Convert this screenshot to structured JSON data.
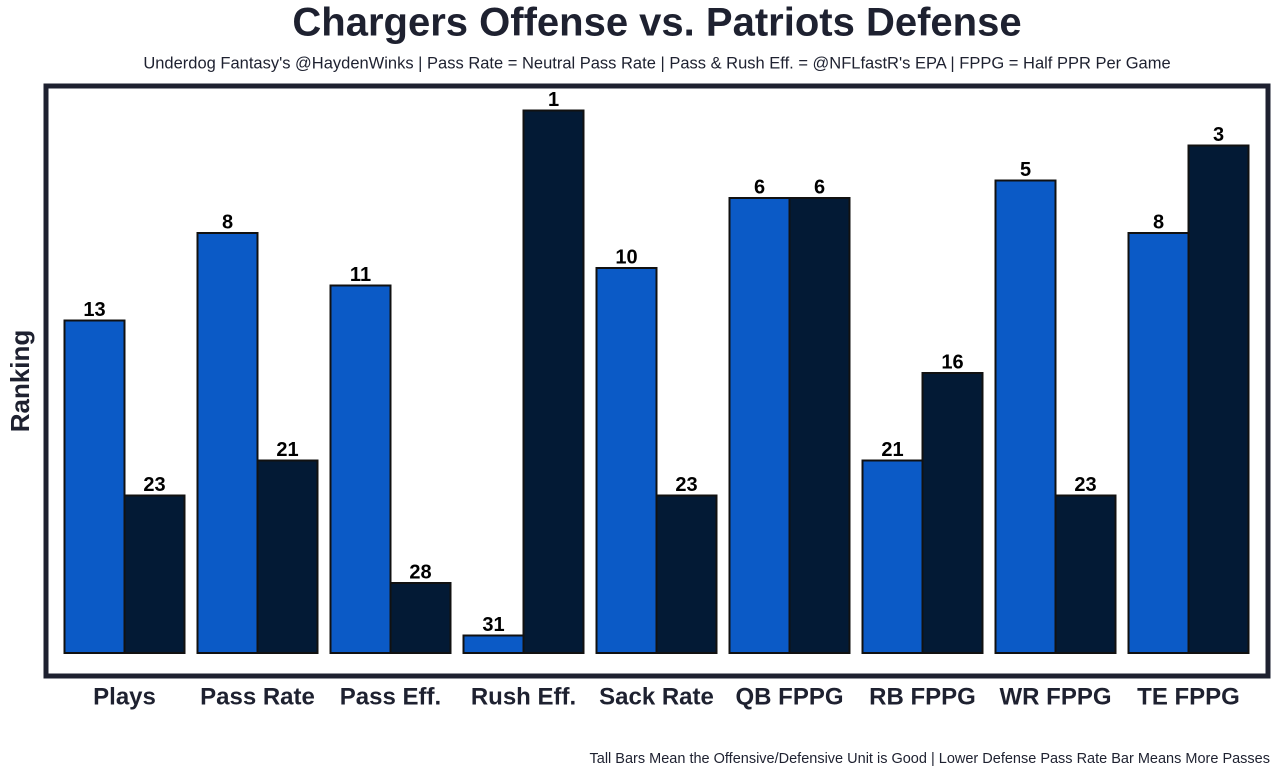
{
  "chart_data": {
    "type": "bar",
    "title": "Chargers Offense vs. Patriots Defense",
    "subtitle": "Underdog Fantasy's @HaydenWinks | Pass Rate = Neutral Pass Rate | Pass & Rush Eff. = @NFLfastR's EPA | FPPG = Half PPR Per Game",
    "y_label": "Ranking",
    "footnote": "Tall Bars Mean the Offensive/Defensive Unit is Good | Lower Defense Pass Rate Bar Means More Passes",
    "categories": [
      "Plays",
      "Pass Rate",
      "Pass Eff.",
      "Rush Eff.",
      "Sack Rate",
      "QB FPPG",
      "RB FPPG",
      "WR FPPG",
      "TE FPPG"
    ],
    "series": [
      {
        "color": "#0b5ac6",
        "values": [
          13,
          8,
          11,
          31,
          10,
          6,
          21,
          5,
          8
        ]
      },
      {
        "color": "#031a35",
        "values": [
          23,
          21,
          28,
          1,
          23,
          6,
          16,
          23,
          3
        ]
      }
    ],
    "ylim": [
      32,
      0
    ]
  }
}
